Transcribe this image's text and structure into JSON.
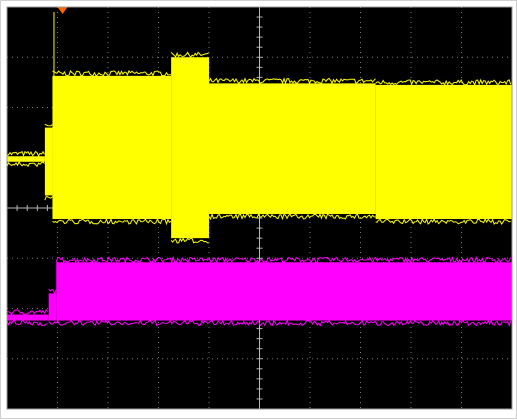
{
  "chart_data": {
    "type": "line",
    "title": "",
    "xlabel": "",
    "ylabel": "",
    "grid": true,
    "divisions": {
      "x": 10,
      "y": 8
    },
    "xlim": [
      0,
      10
    ],
    "ylim": [
      0,
      8
    ],
    "trigger_position_div": 2.0,
    "trigger_marker_color": "#ff6600",
    "colors": {
      "background": "#000000",
      "grid": "#7a7a7a",
      "center_axis": "#b8b8b8",
      "channel_1": "#ffff00",
      "channel_2": "#ff00ff"
    },
    "series": [
      {
        "channel": 1,
        "color": "#ffff00",
        "kind": "envelope",
        "segments": [
          {
            "x": [
              0.0,
              1.5
            ],
            "top": 5.03,
            "bottom": 4.92
          },
          {
            "x": [
              1.5,
              1.8
            ],
            "top": 5.6,
            "bottom": 4.25
          },
          {
            "x": [
              1.8,
              6.5
            ],
            "top": 6.63,
            "bottom": 3.78
          },
          {
            "x": [
              6.5,
              8.0
            ],
            "top": 7.0,
            "bottom": 3.4
          },
          {
            "x": [
              8.0,
              14.6
            ],
            "top": 6.48,
            "bottom": 3.88
          },
          {
            "x": [
              14.6,
              20.0
            ],
            "top": 6.45,
            "bottom": 3.78
          }
        ]
      },
      {
        "channel": 2,
        "color": "#ff00ff",
        "kind": "envelope",
        "segments": [
          {
            "x": [
              0.0,
              1.65
            ],
            "top": 1.88,
            "bottom": 1.76
          },
          {
            "x": [
              1.65,
              1.95
            ],
            "top": 2.3,
            "bottom": 1.76
          },
          {
            "x": [
              1.95,
              20.0
            ],
            "top": 2.92,
            "bottom": 1.76
          }
        ]
      }
    ]
  }
}
